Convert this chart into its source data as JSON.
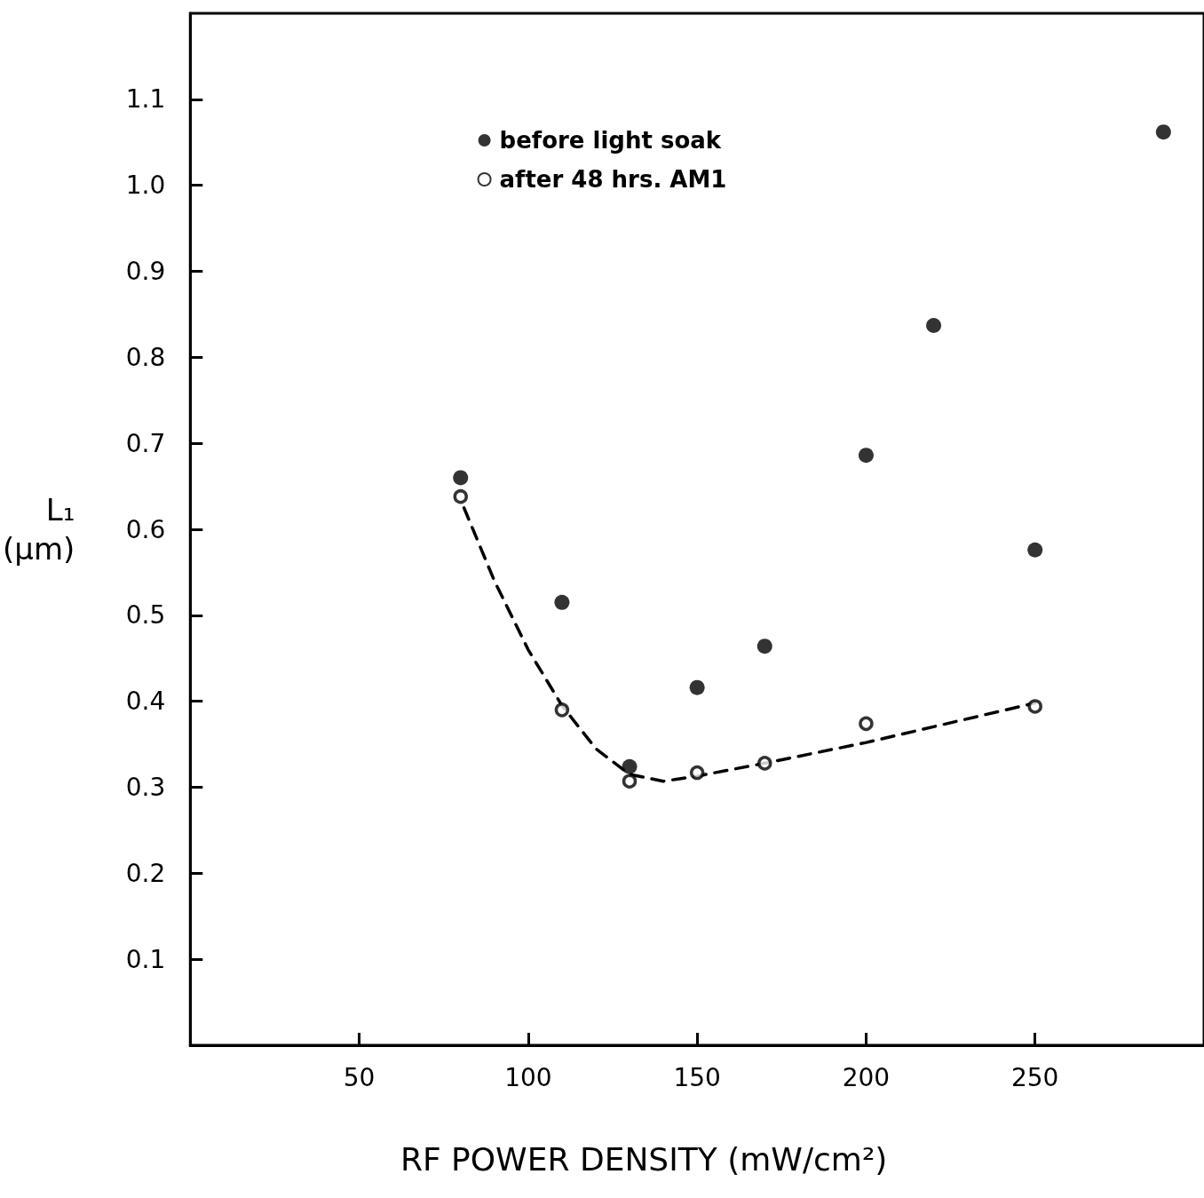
{
  "chart_data": {
    "type": "scatter",
    "xlabel": "RF POWER DENSITY (mW/cm²)",
    "ylabel": "L₁ (μm)",
    "xlim": [
      0,
      300
    ],
    "xticks": [
      50,
      100,
      150,
      200,
      250
    ],
    "ylim": [
      0,
      1.2
    ],
    "yticks": [
      0.1,
      0.2,
      0.3,
      0.4,
      0.5,
      0.6,
      0.7,
      0.8,
      0.9,
      {
        "value": 1.0,
        "label": "1.0"
      },
      1.1
    ],
    "grid": false,
    "legend": "top",
    "series": [
      {
        "name": "before light soak",
        "color": "#000000",
        "marker": "circle",
        "x": [
          80,
          110,
          130,
          150,
          170,
          200,
          220,
          250,
          288
        ],
        "values": [
          0.66,
          0.515,
          0.324,
          0.416,
          0.464,
          0.686,
          0.837,
          0.576,
          1.062
        ]
      },
      {
        "name": "after 48 hrs. AM1",
        "color": "#ffffff",
        "marker": "circle",
        "x": [
          80,
          110,
          130,
          150,
          170,
          200,
          250
        ],
        "values": [
          0.638,
          0.39,
          0.307,
          0.317,
          0.328,
          0.374,
          0.394
        ]
      },
      {
        "type": "line",
        "color": "#000000",
        "marker": "none",
        "line_style": "dashed",
        "x": [
          81,
          90,
          100,
          110,
          120,
          130,
          140,
          150,
          170,
          200,
          250
        ],
        "values": [
          0.625,
          0.54,
          0.46,
          0.395,
          0.345,
          0.315,
          0.307,
          0.313,
          0.328,
          0.352,
          0.398
        ]
      }
    ]
  }
}
